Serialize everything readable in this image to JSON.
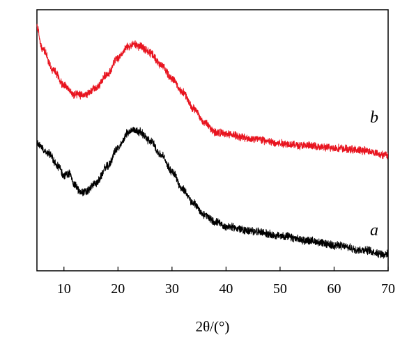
{
  "chart_data": {
    "type": "line",
    "title": "",
    "xlabel": "2θ/(°)",
    "ylabel": "",
    "xlim": [
      5,
      70
    ],
    "ylim": [
      0,
      1
    ],
    "xticks": [
      10,
      20,
      30,
      40,
      50,
      60,
      70
    ],
    "xtick_labels": [
      "10",
      "20",
      "30",
      "40",
      "50",
      "60",
      "70"
    ],
    "grid": false,
    "y_tick_labels_shown": false,
    "series": [
      {
        "name": "a",
        "color": "#000000",
        "x": [
          5,
          7,
          9,
          10,
          11,
          12,
          13,
          14,
          16,
          18,
          20,
          22,
          23,
          24,
          26,
          28,
          30,
          32,
          34,
          36,
          38,
          40,
          45,
          50,
          55,
          60,
          65,
          70
        ],
        "y": [
          0.5,
          0.46,
          0.4,
          0.36,
          0.37,
          0.32,
          0.29,
          0.29,
          0.33,
          0.4,
          0.48,
          0.55,
          0.56,
          0.55,
          0.51,
          0.45,
          0.38,
          0.3,
          0.24,
          0.19,
          0.16,
          0.14,
          0.12,
          0.1,
          0.08,
          0.06,
          0.04,
          0.02
        ]
      },
      {
        "name": "b",
        "color": "#e8141f",
        "x": [
          5,
          6,
          8,
          10,
          12,
          14,
          16,
          18,
          20,
          22,
          23,
          24,
          25,
          26,
          28,
          30,
          32,
          34,
          36,
          38,
          40,
          45,
          50,
          55,
          60,
          65,
          70
        ],
        "y": [
          1.0,
          0.91,
          0.82,
          0.75,
          0.71,
          0.71,
          0.74,
          0.8,
          0.87,
          0.92,
          0.93,
          0.92,
          0.91,
          0.89,
          0.84,
          0.78,
          0.72,
          0.65,
          0.59,
          0.55,
          0.54,
          0.52,
          0.5,
          0.49,
          0.48,
          0.47,
          0.45
        ]
      }
    ],
    "annotations": [
      "b",
      "a"
    ]
  }
}
